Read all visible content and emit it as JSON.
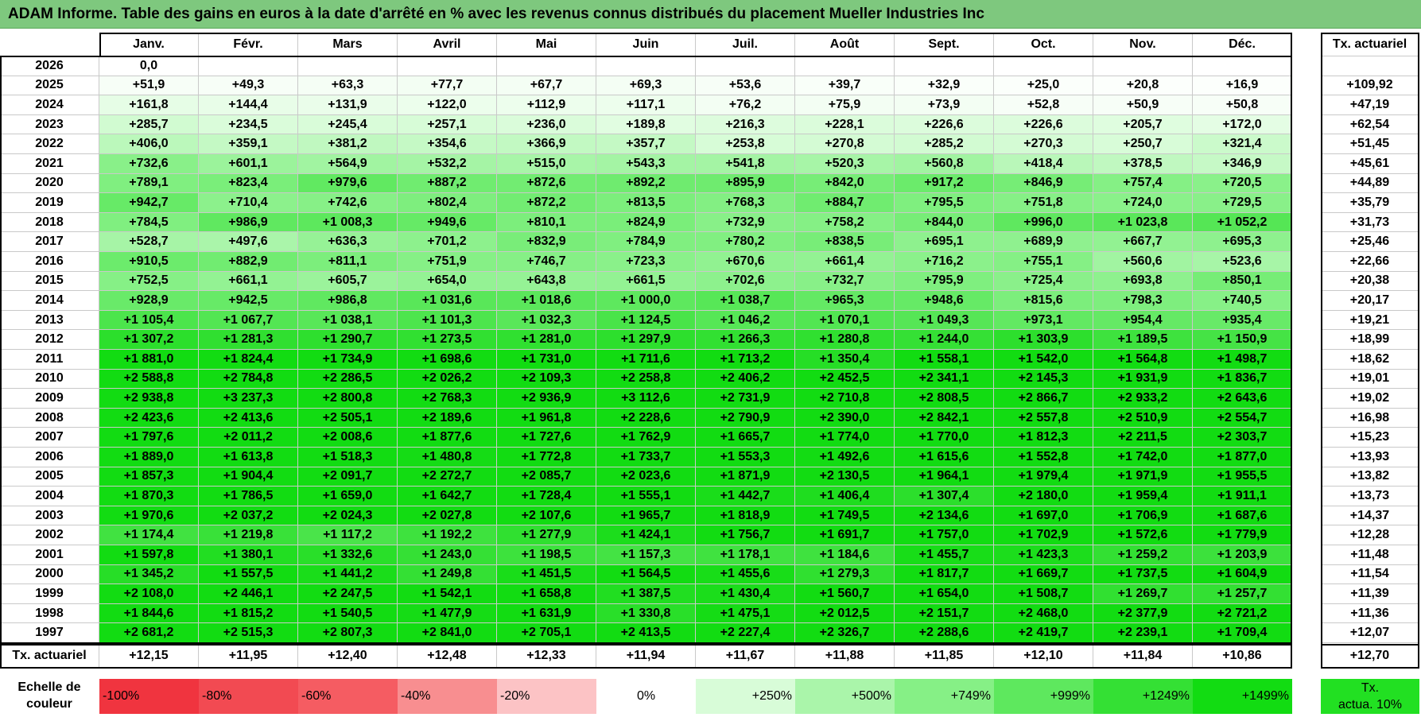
{
  "title": "ADAM Informe. Table des gains en euros à la date d'arrêté en % avec les revenus connus distribués du placement Mueller Industries Inc",
  "chart_data": {
    "type": "table",
    "columns": [
      "Janv.",
      "Févr.",
      "Mars",
      "Avril",
      "Mai",
      "Juin",
      "Juil.",
      "Août",
      "Sept.",
      "Oct.",
      "Nov.",
      "Déc."
    ],
    "rate_header": "Tx. actuariel",
    "rows": [
      {
        "year": "2026",
        "values": [
          "0,0",
          "",
          "",
          "",
          "",
          "",
          "",
          "",
          "",
          "",
          "",
          ""
        ],
        "rate": ""
      },
      {
        "year": "2025",
        "values": [
          "+51,9",
          "+49,3",
          "+63,3",
          "+77,7",
          "+67,7",
          "+69,3",
          "+53,6",
          "+39,7",
          "+32,9",
          "+25,0",
          "+20,8",
          "+16,9"
        ],
        "rate": "+109,92"
      },
      {
        "year": "2024",
        "values": [
          "+161,8",
          "+144,4",
          "+131,9",
          "+122,0",
          "+112,9",
          "+117,1",
          "+76,2",
          "+75,9",
          "+73,9",
          "+52,8",
          "+50,9",
          "+50,8"
        ],
        "rate": "+47,19"
      },
      {
        "year": "2023",
        "values": [
          "+285,7",
          "+234,5",
          "+245,4",
          "+257,1",
          "+236,0",
          "+189,8",
          "+216,3",
          "+228,1",
          "+226,6",
          "+226,6",
          "+205,7",
          "+172,0"
        ],
        "rate": "+62,54"
      },
      {
        "year": "2022",
        "values": [
          "+406,0",
          "+359,1",
          "+381,2",
          "+354,6",
          "+366,9",
          "+357,7",
          "+253,8",
          "+270,8",
          "+285,2",
          "+270,3",
          "+250,7",
          "+321,4"
        ],
        "rate": "+51,45"
      },
      {
        "year": "2021",
        "values": [
          "+732,6",
          "+601,1",
          "+564,9",
          "+532,2",
          "+515,0",
          "+543,3",
          "+541,8",
          "+520,3",
          "+560,8",
          "+418,4",
          "+378,5",
          "+346,9"
        ],
        "rate": "+45,61"
      },
      {
        "year": "2020",
        "values": [
          "+789,1",
          "+823,4",
          "+979,6",
          "+887,2",
          "+872,6",
          "+892,2",
          "+895,9",
          "+842,0",
          "+917,2",
          "+846,9",
          "+757,4",
          "+720,5"
        ],
        "rate": "+44,89"
      },
      {
        "year": "2019",
        "values": [
          "+942,7",
          "+710,4",
          "+742,6",
          "+802,4",
          "+872,2",
          "+813,5",
          "+768,3",
          "+884,7",
          "+795,5",
          "+751,8",
          "+724,0",
          "+729,5"
        ],
        "rate": "+35,79"
      },
      {
        "year": "2018",
        "values": [
          "+784,5",
          "+986,9",
          "+1 008,3",
          "+949,6",
          "+810,1",
          "+824,9",
          "+732,9",
          "+758,2",
          "+844,0",
          "+996,0",
          "+1 023,8",
          "+1 052,2"
        ],
        "rate": "+31,73"
      },
      {
        "year": "2017",
        "values": [
          "+528,7",
          "+497,6",
          "+636,3",
          "+701,2",
          "+832,9",
          "+784,9",
          "+780,2",
          "+838,5",
          "+695,1",
          "+689,9",
          "+667,7",
          "+695,3"
        ],
        "rate": "+25,46"
      },
      {
        "year": "2016",
        "values": [
          "+910,5",
          "+882,9",
          "+811,1",
          "+751,9",
          "+746,7",
          "+723,3",
          "+670,6",
          "+661,4",
          "+716,2",
          "+755,1",
          "+560,6",
          "+523,6"
        ],
        "rate": "+22,66"
      },
      {
        "year": "2015",
        "values": [
          "+752,5",
          "+661,1",
          "+605,7",
          "+654,0",
          "+643,8",
          "+661,5",
          "+702,6",
          "+732,7",
          "+795,9",
          "+725,4",
          "+693,8",
          "+850,1"
        ],
        "rate": "+20,38"
      },
      {
        "year": "2014",
        "values": [
          "+928,9",
          "+942,5",
          "+986,8",
          "+1 031,6",
          "+1 018,6",
          "+1 000,0",
          "+1 038,7",
          "+965,3",
          "+948,6",
          "+815,6",
          "+798,3",
          "+740,5"
        ],
        "rate": "+20,17"
      },
      {
        "year": "2013",
        "values": [
          "+1 105,4",
          "+1 067,7",
          "+1 038,1",
          "+1 101,3",
          "+1 032,3",
          "+1 124,5",
          "+1 046,2",
          "+1 070,1",
          "+1 049,3",
          "+973,1",
          "+954,4",
          "+935,4"
        ],
        "rate": "+19,21"
      },
      {
        "year": "2012",
        "values": [
          "+1 307,2",
          "+1 281,3",
          "+1 290,7",
          "+1 273,5",
          "+1 281,0",
          "+1 297,9",
          "+1 266,3",
          "+1 280,8",
          "+1 244,0",
          "+1 303,9",
          "+1 189,5",
          "+1 150,9"
        ],
        "rate": "+18,99"
      },
      {
        "year": "2011",
        "values": [
          "+1 881,0",
          "+1 824,4",
          "+1 734,9",
          "+1 698,6",
          "+1 731,0",
          "+1 711,6",
          "+1 713,2",
          "+1 350,4",
          "+1 558,1",
          "+1 542,0",
          "+1 564,8",
          "+1 498,7"
        ],
        "rate": "+18,62"
      },
      {
        "year": "2010",
        "values": [
          "+2 588,8",
          "+2 784,8",
          "+2 286,5",
          "+2 026,2",
          "+2 109,3",
          "+2 258,8",
          "+2 406,2",
          "+2 452,5",
          "+2 341,1",
          "+2 145,3",
          "+1 931,9",
          "+1 836,7"
        ],
        "rate": "+19,01"
      },
      {
        "year": "2009",
        "values": [
          "+2 938,8",
          "+3 237,3",
          "+2 800,8",
          "+2 768,3",
          "+2 936,9",
          "+3 112,6",
          "+2 731,9",
          "+2 710,8",
          "+2 808,5",
          "+2 866,7",
          "+2 933,2",
          "+2 643,6"
        ],
        "rate": "+19,02"
      },
      {
        "year": "2008",
        "values": [
          "+2 423,6",
          "+2 413,6",
          "+2 505,1",
          "+2 189,6",
          "+1 961,8",
          "+2 228,6",
          "+2 790,9",
          "+2 390,0",
          "+2 842,1",
          "+2 557,8",
          "+2 510,9",
          "+2 554,7"
        ],
        "rate": "+16,98"
      },
      {
        "year": "2007",
        "values": [
          "+1 797,6",
          "+2 011,2",
          "+2 008,6",
          "+1 877,6",
          "+1 727,6",
          "+1 762,9",
          "+1 665,7",
          "+1 774,0",
          "+1 770,0",
          "+1 812,3",
          "+2 211,5",
          "+2 303,7"
        ],
        "rate": "+15,23"
      },
      {
        "year": "2006",
        "values": [
          "+1 889,0",
          "+1 613,8",
          "+1 518,3",
          "+1 480,8",
          "+1 772,8",
          "+1 733,7",
          "+1 553,3",
          "+1 492,6",
          "+1 615,6",
          "+1 552,8",
          "+1 742,0",
          "+1 877,0"
        ],
        "rate": "+13,93"
      },
      {
        "year": "2005",
        "values": [
          "+1 857,3",
          "+1 904,4",
          "+2 091,7",
          "+2 272,7",
          "+2 085,7",
          "+2 023,6",
          "+1 871,9",
          "+2 130,5",
          "+1 964,1",
          "+1 979,4",
          "+1 971,9",
          "+1 955,5"
        ],
        "rate": "+13,82"
      },
      {
        "year": "2004",
        "values": [
          "+1 870,3",
          "+1 786,5",
          "+1 659,0",
          "+1 642,7",
          "+1 728,4",
          "+1 555,1",
          "+1 442,7",
          "+1 406,4",
          "+1 307,4",
          "+2 180,0",
          "+1 959,4",
          "+1 911,1"
        ],
        "rate": "+13,73"
      },
      {
        "year": "2003",
        "values": [
          "+1 970,6",
          "+2 037,2",
          "+2 024,3",
          "+2 027,8",
          "+2 107,6",
          "+1 965,7",
          "+1 818,9",
          "+1 749,5",
          "+2 134,6",
          "+1 697,0",
          "+1 706,9",
          "+1 687,6"
        ],
        "rate": "+14,37"
      },
      {
        "year": "2002",
        "values": [
          "+1 174,4",
          "+1 219,8",
          "+1 117,2",
          "+1 192,2",
          "+1 277,9",
          "+1 424,1",
          "+1 756,7",
          "+1 691,7",
          "+1 757,0",
          "+1 702,9",
          "+1 572,6",
          "+1 779,9"
        ],
        "rate": "+12,28"
      },
      {
        "year": "2001",
        "values": [
          "+1 597,8",
          "+1 380,1",
          "+1 332,6",
          "+1 243,0",
          "+1 198,5",
          "+1 157,3",
          "+1 178,1",
          "+1 184,6",
          "+1 455,7",
          "+1 423,3",
          "+1 259,2",
          "+1 203,9"
        ],
        "rate": "+11,48"
      },
      {
        "year": "2000",
        "values": [
          "+1 345,2",
          "+1 557,5",
          "+1 441,2",
          "+1 249,8",
          "+1 451,5",
          "+1 564,5",
          "+1 455,6",
          "+1 279,3",
          "+1 817,7",
          "+1 669,7",
          "+1 737,5",
          "+1 604,9"
        ],
        "rate": "+11,54"
      },
      {
        "year": "1999",
        "values": [
          "+2 108,0",
          "+2 446,1",
          "+2 247,5",
          "+1 542,1",
          "+1 658,8",
          "+1 387,5",
          "+1 430,4",
          "+1 560,7",
          "+1 654,0",
          "+1 508,7",
          "+1 269,7",
          "+1 257,7"
        ],
        "rate": "+11,39"
      },
      {
        "year": "1998",
        "values": [
          "+1 844,6",
          "+1 815,2",
          "+1 540,5",
          "+1 477,9",
          "+1 631,9",
          "+1 330,8",
          "+1 475,1",
          "+2 012,5",
          "+2 151,7",
          "+2 468,0",
          "+2 377,9",
          "+2 721,2"
        ],
        "rate": "+11,36"
      },
      {
        "year": "1997",
        "values": [
          "+2 681,2",
          "+2 515,3",
          "+2 807,3",
          "+2 841,0",
          "+2 705,1",
          "+2 413,5",
          "+2 227,4",
          "+2 326,7",
          "+2 288,6",
          "+2 419,7",
          "+2 239,1",
          "+1 709,4"
        ],
        "rate": "+12,07"
      }
    ],
    "footer": {
      "label": "Tx. actuariel",
      "values": [
        "+12,15",
        "+11,95",
        "+12,40",
        "+12,48",
        "+12,33",
        "+11,94",
        "+11,67",
        "+11,88",
        "+11,85",
        "+12,10",
        "+11,84",
        "+10,86"
      ],
      "rate": "+12,70"
    }
  },
  "legend": {
    "label_line1": "Echelle de",
    "label_line2": "couleur",
    "steps": [
      {
        "label": "-100%",
        "color": "#f0343f",
        "align": "l"
      },
      {
        "label": "-80%",
        "color": "#f24a52",
        "align": "l"
      },
      {
        "label": "-60%",
        "color": "#f55c62",
        "align": "l"
      },
      {
        "label": "-40%",
        "color": "#f88e90",
        "align": "l"
      },
      {
        "label": "-20%",
        "color": "#fcc3c5",
        "align": "l"
      },
      {
        "label": "0%",
        "color": "#ffffff",
        "align": "c"
      },
      {
        "label": "+250%",
        "color": "#d8fcd8",
        "align": "r"
      },
      {
        "label": "+500%",
        "color": "#aaf5aa",
        "align": "r"
      },
      {
        "label": "+749%",
        "color": "#86f086",
        "align": "r"
      },
      {
        "label": "+999%",
        "color": "#5ee85e",
        "align": "r"
      },
      {
        "label": "+1249%",
        "color": "#34e034",
        "align": "r"
      },
      {
        "label": "+1499%",
        "color": "#12dc12",
        "align": "r"
      }
    ],
    "rate_label_line1": "Tx.",
    "rate_label_line2": "actua. 10%",
    "rate_color": "#22e022"
  }
}
